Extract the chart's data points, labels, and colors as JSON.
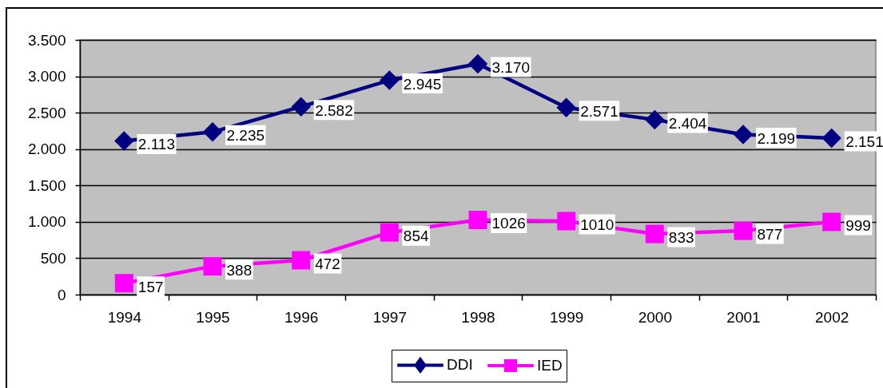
{
  "chart_data": {
    "type": "line",
    "categories": [
      "1994",
      "1995",
      "1996",
      "1997",
      "1998",
      "1999",
      "2000",
      "2001",
      "2002"
    ],
    "series": [
      {
        "name": "DDI",
        "color": "#000080",
        "marker": "diamond",
        "values": [
          2113,
          2235,
          2582,
          2945,
          3170,
          2571,
          2404,
          2199,
          2151
        ],
        "value_labels": [
          "2.113",
          "2.235",
          "2.582",
          "2.945",
          "3.170",
          "2.571",
          "2.404",
          "2.199",
          "2.151"
        ]
      },
      {
        "name": "IED",
        "color": "#ff00ff",
        "marker": "square",
        "values": [
          157,
          388,
          472,
          854,
          1026,
          1010,
          833,
          877,
          999
        ],
        "value_labels": [
          "157",
          "388",
          "472",
          "854",
          "1026",
          "1010",
          "833",
          "877",
          "999"
        ]
      }
    ],
    "ylim": [
      0,
      3500
    ],
    "yticks": [
      0,
      500,
      {
        "value": 1000,
        "label": "1.000"
      },
      {
        "value": 1500,
        "label": "1.500"
      },
      {
        "value": 2000,
        "label": "2.000"
      },
      {
        "value": 2500,
        "label": "2.500"
      },
      {
        "value": 3000,
        "label": "3.000"
      },
      {
        "value": 3500,
        "label": "3.500"
      }
    ],
    "grid": "y",
    "legend": "bottom"
  }
}
